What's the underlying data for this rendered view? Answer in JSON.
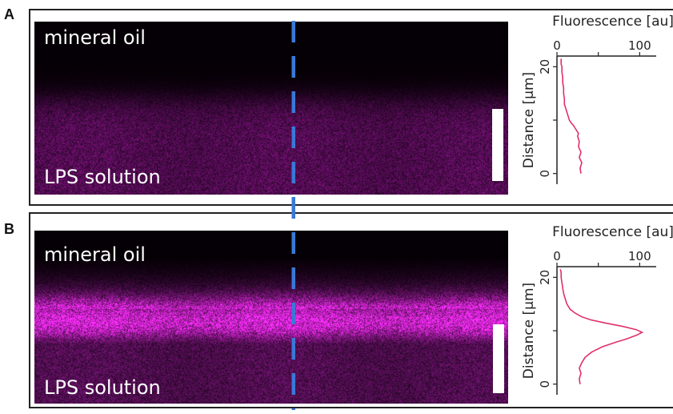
{
  "figure": {
    "panels": [
      {
        "id": "A",
        "letter": "A",
        "top_label": "mineral oil",
        "bottom_label": "LPS solution",
        "plot": {
          "title": "Fluorescence [au]",
          "xlabel": "Fluorescence [au]",
          "ylabel": "Distance [µm]",
          "x_ticks": [
            "0",
            "100"
          ],
          "y_ticks": [
            "0",
            "20"
          ],
          "xlim": [
            0,
            120
          ],
          "ylim": [
            -2,
            22
          ],
          "line_color": "#e0306a"
        },
        "image_style": {
          "peak_color": "#cc22cc",
          "peak_intensity": 0.45,
          "transition_fraction": 0.45,
          "profile": "step"
        }
      },
      {
        "id": "B",
        "letter": "B",
        "top_label": "mineral oil",
        "bottom_label": "LPS solution",
        "plot": {
          "title": "Fluorescence [au]",
          "xlabel": "Fluorescence [au]",
          "ylabel": "Distance [µm]",
          "x_ticks": [
            "0",
            "100"
          ],
          "y_ticks": [
            "0",
            "20"
          ],
          "xlim": [
            0,
            120
          ],
          "ylim": [
            -2,
            22
          ],
          "line_color": "#e0306a"
        },
        "image_style": {
          "peak_color": "#ff33ff",
          "peak_intensity": 1.0,
          "transition_fraction": 0.45,
          "profile": "peak"
        }
      }
    ],
    "dashed_line_color": "#3a78d8"
  },
  "chart_data": [
    {
      "type": "line",
      "title": "Fluorescence [au]",
      "xlabel": "Fluorescence [au]",
      "ylabel": "Distance [µm]",
      "xlim": [
        0,
        120
      ],
      "ylim": [
        -2,
        22
      ],
      "series": [
        {
          "x": [
            29,
            28,
            30,
            27,
            29,
            26,
            27,
            25,
            26,
            24,
            22,
            20,
            17,
            15,
            14,
            13,
            12,
            11,
            10,
            9,
            9,
            8,
            8,
            7,
            7,
            6,
            6,
            6,
            5,
            5,
            5
          ],
          "y": [
            0,
            1,
            2,
            3,
            4,
            5,
            6,
            7,
            7.5,
            8,
            8.5,
            9,
            9.5,
            10,
            10.5,
            11,
            11.5,
            12,
            12.5,
            13,
            14,
            15,
            16,
            17,
            18,
            19,
            19.5,
            20,
            20.5,
            21,
            21.5
          ]
        }
      ]
    },
    {
      "type": "line",
      "title": "Fluorescence [au]",
      "xlabel": "Fluorescence [au]",
      "ylabel": "Distance [µm]",
      "xlim": [
        0,
        120
      ],
      "ylim": [
        -2,
        22
      ],
      "series": [
        {
          "x": [
            28,
            27,
            29,
            27,
            30,
            34,
            42,
            55,
            70,
            85,
            97,
            103,
            96,
            80,
            60,
            42,
            30,
            22,
            16,
            12,
            10,
            8,
            7,
            6,
            5,
            5,
            4
          ],
          "y": [
            0,
            1,
            2,
            3,
            4,
            5,
            6,
            7,
            7.8,
            8.5,
            9.2,
            9.7,
            10.2,
            10.8,
            11.4,
            12,
            12.6,
            13.3,
            14,
            15,
            16,
            17,
            18,
            19,
            20,
            21,
            21.5
          ]
        }
      ]
    }
  ]
}
